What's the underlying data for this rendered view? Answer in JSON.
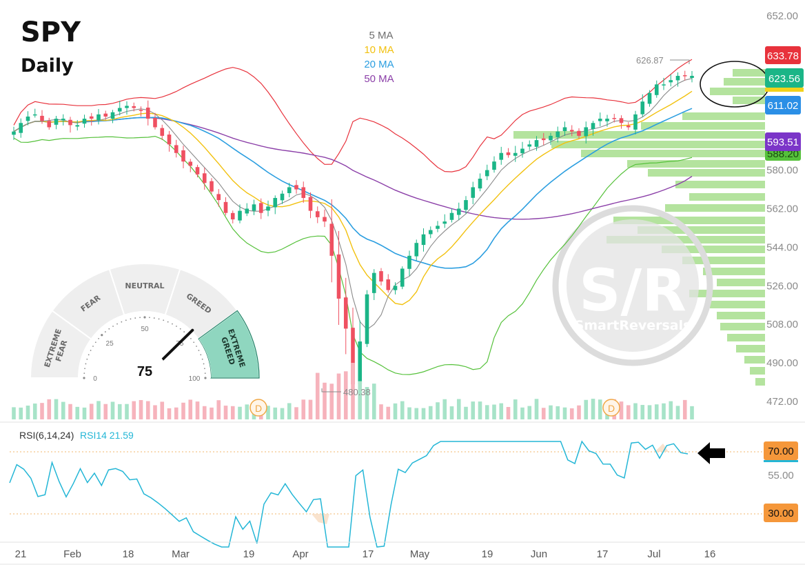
{
  "header": {
    "symbol": "SPY",
    "timeframe": "Daily"
  },
  "legend": [
    {
      "label": "5 MA",
      "color": "#6e6e6e"
    },
    {
      "label": "10 MA",
      "color": "#f2c10f"
    },
    {
      "label": "20 MA",
      "color": "#2b9ee0"
    },
    {
      "label": "50 MA",
      "color": "#8b3fa8"
    }
  ],
  "chart_data": {
    "type": "candlestick",
    "title": "SPY Daily",
    "y_axis": {
      "ticks": [
        652,
        634,
        616,
        598,
        580,
        562,
        544,
        526,
        508,
        490,
        472
      ],
      "tick_labels": [
        "652.00",
        "",
        "",
        "",
        "580.00",
        "562.00",
        "544.00",
        "526.00",
        "508.00",
        "490.00",
        "472.00"
      ],
      "range": [
        468,
        655
      ]
    },
    "x_axis": {
      "labels": [
        "21",
        "Feb",
        "18",
        "Mar",
        "19",
        "Apr",
        "17",
        "May",
        "19",
        "Jun",
        "17",
        "Jul",
        "16"
      ]
    },
    "price_tags": [
      {
        "value": "633.78",
        "color": "#e8323c"
      },
      {
        "value": "623.56",
        "color": "#1bb587"
      },
      {
        "value": "611.02",
        "color": "#2b8fe6"
      },
      {
        "value": "593.51",
        "color": "#7b35c8"
      },
      {
        "value": "588.20",
        "color": "#55c13a"
      }
    ],
    "annotations": {
      "high": "626.87",
      "low": "480.38",
      "dividend_marker": "D"
    },
    "indicator": {
      "name": "RSI(6,14,24)",
      "series_label": "RSI14 21.59",
      "levels": [
        "70.00",
        "55.00",
        "30.00"
      ],
      "level_values": [
        70,
        55,
        30
      ]
    },
    "sentiment_gauge": {
      "value": 75,
      "value_label": "75",
      "segments": [
        "EXTREME FEAR",
        "FEAR",
        "NEUTRAL",
        "GREED",
        "EXTREME GREED"
      ],
      "scale_labels": [
        "0",
        "25",
        "50",
        "75",
        "100"
      ]
    },
    "watermark": {
      "logo": "S/R",
      "brand": "SmartReversals"
    }
  }
}
